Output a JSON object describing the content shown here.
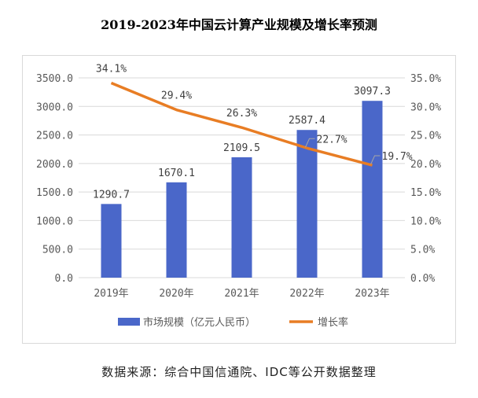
{
  "chart_data": {
    "type": "bar",
    "title": "2019-2023年中国云计算产业规模及增长率预测",
    "categories": [
      "2019年",
      "2020年",
      "2021年",
      "2022年",
      "2023年"
    ],
    "series": [
      {
        "name": "市场规模（亿元人民币）",
        "type": "bar",
        "axis": "left",
        "color": "#4A67C9",
        "values": [
          1290.7,
          1670.1,
          2109.5,
          2587.4,
          3097.3
        ],
        "labels": [
          "1290.7",
          "1670.1",
          "2109.5",
          "2587.4",
          "3097.3"
        ]
      },
      {
        "name": "增长率",
        "type": "line",
        "axis": "right",
        "color": "#E87D24",
        "values": [
          34.1,
          29.4,
          26.3,
          22.7,
          19.7
        ],
        "labels": [
          "34.1%",
          "29.4%",
          "26.3%",
          "22.7%",
          "19.7%"
        ]
      }
    ],
    "y_left": {
      "ylim": [
        0,
        3500
      ],
      "ticks": [
        "0.0",
        "500.0",
        "1000.0",
        "1500.0",
        "2000.0",
        "2500.0",
        "3000.0",
        "3500.0"
      ]
    },
    "y_right": {
      "ylim": [
        0,
        35
      ],
      "ticks": [
        "0.0%",
        "5.0%",
        "10.0%",
        "15.0%",
        "20.0%",
        "25.0%",
        "30.0%",
        "35.0%"
      ]
    },
    "grid": true,
    "legend": "bottom"
  },
  "source": "数据来源：综合中国信通院、IDC等公开数据整理"
}
